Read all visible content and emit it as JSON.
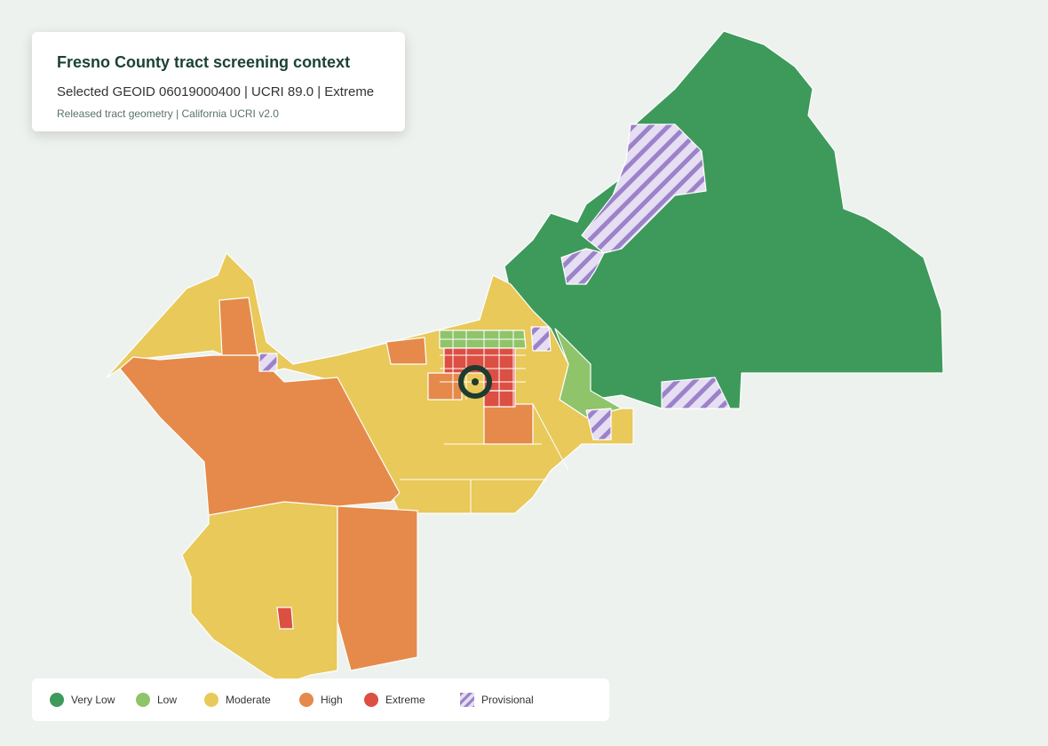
{
  "header": {
    "title": "Fresno County tract screening context",
    "selection": "Selected GEOID 06019000400 | UCRI 89.0 | Extreme",
    "source": "Released tract geometry | California UCRI v2.0"
  },
  "legend": {
    "items": [
      {
        "label": "Very Low",
        "color": "#3d9a5a"
      },
      {
        "label": "Low",
        "color": "#8fc46a"
      },
      {
        "label": "Moderate",
        "color": "#e8c95a"
      },
      {
        "label": "High",
        "color": "#e58a4a"
      },
      {
        "label": "Extreme",
        "color": "#dc4f43"
      },
      {
        "label": "Provisional",
        "color": "#9b82c9",
        "hatched": true
      }
    ]
  }
}
